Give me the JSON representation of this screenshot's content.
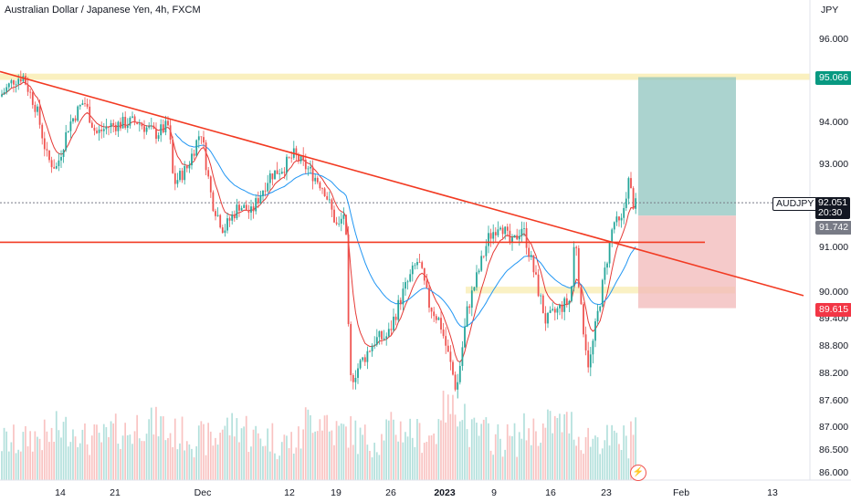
{
  "header": {
    "title": "Australian Dollar / Japanese Yen, 4h, FXCM"
  },
  "colors": {
    "up": "#26a69a",
    "down": "#ef5350",
    "ema_fast": "#e53935",
    "ema_slow": "#2196f3",
    "trendline": "#f23a22",
    "zone_yellow": "#f5e48a",
    "target_zone": "#8fc4bf",
    "stop_zone": "#f2b8b8",
    "axis_text": "#131722"
  },
  "chart_data": {
    "type": "candlestick",
    "symbol": "AUDJPY",
    "title": "Australian Dollar / Japanese Yen, 4h, FXCM",
    "currency_label": "JPY",
    "ylim": [
      85.9,
      96.7
    ],
    "y_ticks": [
      "96.000",
      "94.000",
      "93.000",
      "91.000",
      "90.000",
      "89.400",
      "88.800",
      "88.200",
      "87.600",
      "87.000",
      "86.500",
      "86.000"
    ],
    "x_ticks": [
      "14",
      "21",
      "Dec",
      "12",
      "19",
      "26",
      "2023",
      "9",
      "16",
      "23",
      "Feb",
      "13"
    ],
    "price_path": [
      [
        0,
        94.6
      ],
      [
        15,
        95.0
      ],
      [
        25,
        95.1
      ],
      [
        40,
        94.3
      ],
      [
        52,
        93.1
      ],
      [
        62,
        92.9
      ],
      [
        75,
        93.9
      ],
      [
        92,
        94.5
      ],
      [
        105,
        93.7
      ],
      [
        120,
        93.9
      ],
      [
        150,
        94.0
      ],
      [
        170,
        93.7
      ],
      [
        185,
        93.9
      ],
      [
        190,
        92.5
      ],
      [
        205,
        92.9
      ],
      [
        220,
        93.8
      ],
      [
        232,
        92.1
      ],
      [
        245,
        91.4
      ],
      [
        262,
        92.0
      ],
      [
        275,
        91.8
      ],
      [
        295,
        92.7
      ],
      [
        310,
        92.9
      ],
      [
        322,
        93.2
      ],
      [
        340,
        92.8
      ],
      [
        355,
        92.4
      ],
      [
        370,
        91.4
      ],
      [
        378,
        91.9
      ],
      [
        383,
        88.0
      ],
      [
        395,
        88.4
      ],
      [
        410,
        88.9
      ],
      [
        425,
        89.0
      ],
      [
        440,
        89.9
      ],
      [
        458,
        90.7
      ],
      [
        470,
        89.7
      ],
      [
        482,
        89.3
      ],
      [
        493,
        88.4
      ],
      [
        500,
        87.8
      ],
      [
        512,
        89.6
      ],
      [
        525,
        90.5
      ],
      [
        535,
        91.2
      ],
      [
        548,
        91.6
      ],
      [
        560,
        91.0
      ],
      [
        572,
        91.5
      ],
      [
        585,
        90.4
      ],
      [
        598,
        89.3
      ],
      [
        612,
        89.6
      ],
      [
        625,
        89.8
      ],
      [
        630,
        91.4
      ],
      [
        636,
        89.6
      ],
      [
        645,
        88.3
      ],
      [
        658,
        89.9
      ],
      [
        672,
        91.6
      ],
      [
        680,
        91.5
      ],
      [
        688,
        92.6
      ],
      [
        695,
        91.9
      ],
      [
        697,
        92.05
      ]
    ],
    "volume_levels": [
      0.25,
      0.35,
      0.5,
      0.3,
      0.45,
      0.6,
      0.4,
      0.3,
      0.55,
      0.35,
      0.25,
      0.7,
      0.45,
      0.3,
      0.5,
      0.38,
      0.9,
      0.42,
      0.3,
      0.48,
      0.6,
      0.33,
      0.27,
      0.55
    ],
    "current_price": "92.051",
    "countdown": "20:30",
    "entry_level": "91.742",
    "target_level": "95.066",
    "stop_level": "89.615",
    "resistance_zone": [
      95.0,
      95.15
    ],
    "support_zone": [
      89.95,
      90.1
    ],
    "horizontal_level": 91.1,
    "trendline_points": [
      [
        0,
        95.2
      ],
      [
        880,
        89.9
      ]
    ],
    "grid": false,
    "legend": "none"
  }
}
